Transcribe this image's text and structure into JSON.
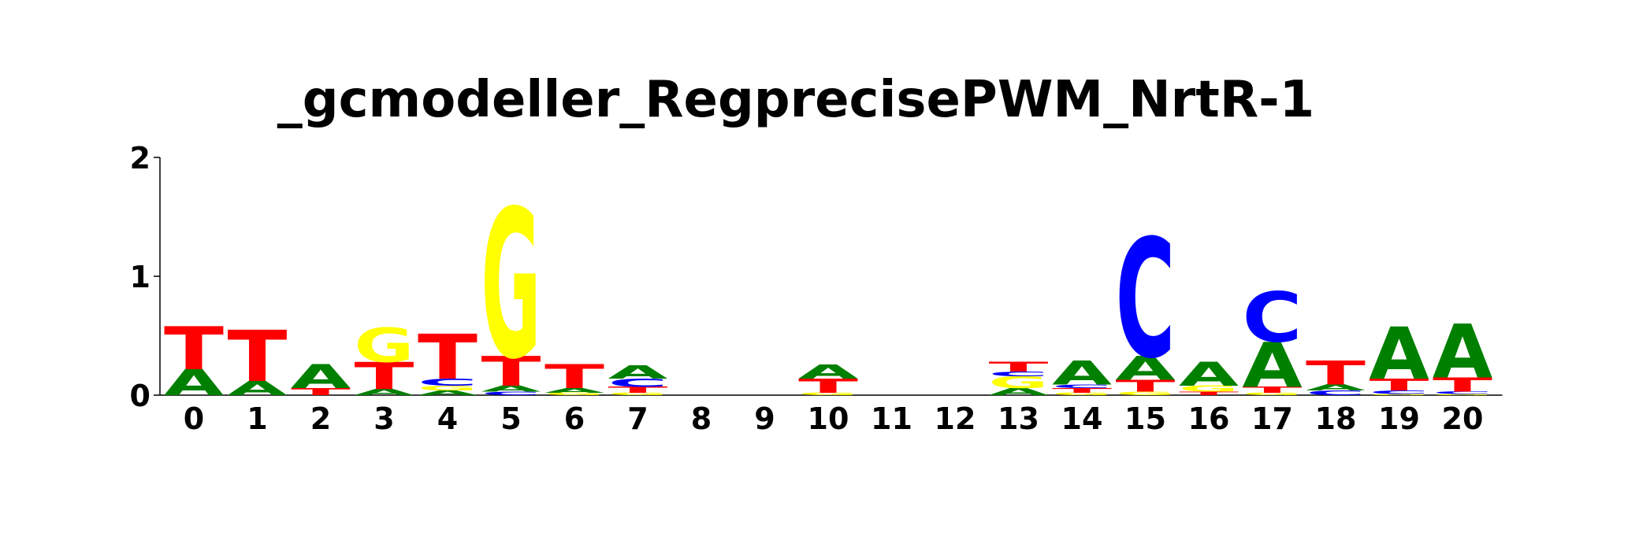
{
  "chart_data": {
    "type": "sequence-logo",
    "title": "_gcmodeller_RegprecisePWM_NrtR-1",
    "ylim": [
      0,
      2
    ],
    "yticks": [
      "0",
      "1",
      "2"
    ],
    "xticks": [
      "0",
      "1",
      "2",
      "3",
      "4",
      "5",
      "6",
      "7",
      "8",
      "9",
      "10",
      "11",
      "12",
      "13",
      "14",
      "15",
      "16",
      "17",
      "18",
      "19",
      "20"
    ],
    "letter_colors": {
      "A": "#008000",
      "C": "#0000ff",
      "G": "#ffff00",
      "T": "#ff0000"
    },
    "positions": [
      {
        "pos": "0",
        "stack": [
          [
            "A",
            0.22
          ],
          [
            "T",
            0.36
          ]
        ]
      },
      {
        "pos": "1",
        "stack": [
          [
            "A",
            0.12
          ],
          [
            "T",
            0.43
          ]
        ]
      },
      {
        "pos": "2",
        "stack": [
          [
            "T",
            0.06
          ],
          [
            "A",
            0.2
          ]
        ]
      },
      {
        "pos": "3",
        "stack": [
          [
            "A",
            0.05
          ],
          [
            "T",
            0.23
          ],
          [
            "G",
            0.29
          ]
        ]
      },
      {
        "pos": "4",
        "stack": [
          [
            "A",
            0.04
          ],
          [
            "G",
            0.04
          ],
          [
            "C",
            0.06
          ],
          [
            "T",
            0.38
          ]
        ]
      },
      {
        "pos": "5",
        "stack": [
          [
            "C",
            0.03
          ],
          [
            "A",
            0.05
          ],
          [
            "T",
            0.25
          ],
          [
            "G",
            1.25
          ]
        ]
      },
      {
        "pos": "6",
        "stack": [
          [
            "G",
            0.02
          ],
          [
            "A",
            0.04
          ],
          [
            "T",
            0.2
          ]
        ]
      },
      {
        "pos": "7",
        "stack": [
          [
            "G",
            0.02
          ],
          [
            "T",
            0.05
          ],
          [
            "C",
            0.07
          ],
          [
            "A",
            0.11
          ]
        ]
      },
      {
        "pos": "8",
        "stack": []
      },
      {
        "pos": "9",
        "stack": []
      },
      {
        "pos": "10",
        "stack": [
          [
            "G",
            0.02
          ],
          [
            "T",
            0.12
          ],
          [
            "A",
            0.12
          ]
        ]
      },
      {
        "pos": "11",
        "stack": []
      },
      {
        "pos": "12",
        "stack": []
      },
      {
        "pos": "13",
        "stack": [
          [
            "A",
            0.06
          ],
          [
            "G",
            0.1
          ],
          [
            "C",
            0.04
          ],
          [
            "T",
            0.08
          ]
        ]
      },
      {
        "pos": "14",
        "stack": [
          [
            "G",
            0.02
          ],
          [
            "T",
            0.04
          ],
          [
            "C",
            0.03
          ],
          [
            "A",
            0.2
          ]
        ]
      },
      {
        "pos": "15",
        "stack": [
          [
            "G",
            0.03
          ],
          [
            "T",
            0.1
          ],
          [
            "A",
            0.2
          ],
          [
            "C",
            1.0
          ]
        ]
      },
      {
        "pos": "16",
        "stack": [
          [
            "T",
            0.03
          ],
          [
            "G",
            0.05
          ],
          [
            "A",
            0.2
          ]
        ]
      },
      {
        "pos": "17",
        "stack": [
          [
            "G",
            0.02
          ],
          [
            "T",
            0.05
          ],
          [
            "A",
            0.38
          ],
          [
            "C",
            0.42
          ]
        ]
      },
      {
        "pos": "18",
        "stack": [
          [
            "C",
            0.04
          ],
          [
            "A",
            0.05
          ],
          [
            "T",
            0.2
          ]
        ]
      },
      {
        "pos": "19",
        "stack": [
          [
            "G",
            0.01
          ],
          [
            "C",
            0.03
          ],
          [
            "T",
            0.1
          ],
          [
            "A",
            0.44
          ]
        ]
      },
      {
        "pos": "20",
        "stack": [
          [
            "G",
            0.01
          ],
          [
            "C",
            0.02
          ],
          [
            "T",
            0.12
          ],
          [
            "A",
            0.45
          ]
        ]
      }
    ]
  }
}
